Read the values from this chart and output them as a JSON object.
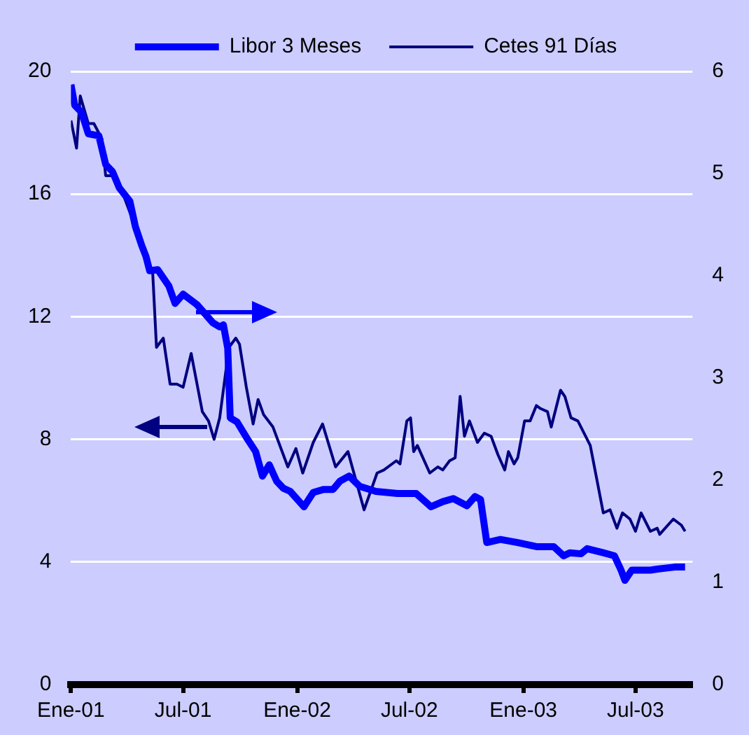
{
  "chart_data": {
    "type": "line",
    "xlim": [
      "2001-01-01",
      "2003-10-01"
    ],
    "xticks": [
      {
        "value": "2001-01-01",
        "label": "Ene-01"
      },
      {
        "value": "2001-07-01",
        "label": "Jul-01"
      },
      {
        "value": "2002-01-01",
        "label": "Ene-02"
      },
      {
        "value": "2002-07-01",
        "label": "Jul-02"
      },
      {
        "value": "2003-01-01",
        "label": "Ene-03"
      },
      {
        "value": "2003-07-01",
        "label": "Jul-03"
      }
    ],
    "ylim": [
      0,
      20
    ],
    "yticks": [
      0,
      4,
      8,
      12,
      16,
      20
    ],
    "y2lim": [
      0,
      6
    ],
    "y2ticks": [
      0,
      1,
      2,
      3,
      4,
      5,
      6
    ],
    "grid": "y",
    "legend": "top",
    "marker": "none",
    "line_style": "solid",
    "series": [
      {
        "name": "Libor 3 Meses",
        "color": "#0000ff",
        "axis": "y2",
        "x": [
          "2001-01-01",
          "2001-01-07",
          "2001-01-18",
          "2001-01-29",
          "2001-02-15",
          "2001-02-26",
          "2001-03-09",
          "2001-03-20",
          "2001-04-06",
          "2001-04-15",
          "2001-04-25",
          "2001-05-02",
          "2001-05-08",
          "2001-05-21",
          "2001-06-08",
          "2001-06-18",
          "2001-07-01",
          "2001-07-23",
          "2001-08-18",
          "2001-08-29",
          "2001-09-04",
          "2001-09-11",
          "2001-09-15",
          "2001-09-26",
          "2001-10-11",
          "2001-10-26",
          "2001-11-06",
          "2001-11-17",
          "2001-11-29",
          "2001-12-10",
          "2001-12-21",
          "2002-01-12",
          "2002-01-27",
          "2002-02-13",
          "2002-02-28",
          "2002-03-11",
          "2002-03-26",
          "2002-04-12",
          "2002-05-08",
          "2002-06-12",
          "2002-07-12",
          "2002-08-05",
          "2002-08-24",
          "2002-09-10",
          "2002-10-02",
          "2002-10-15",
          "2002-10-24",
          "2002-11-03",
          "2002-11-25",
          "2002-12-23",
          "2003-01-22",
          "2003-02-19",
          "2003-03-07",
          "2003-03-17",
          "2003-04-04",
          "2003-04-14",
          "2003-05-10",
          "2003-05-28",
          "2003-06-07",
          "2003-06-14",
          "2003-06-25",
          "2003-07-25",
          "2003-08-05",
          "2003-09-02",
          "2003-09-19"
        ],
        "values": [
          5.87,
          5.67,
          5.6,
          5.39,
          5.37,
          5.09,
          5.02,
          4.86,
          4.73,
          4.48,
          4.3,
          4.19,
          4.05,
          4.06,
          3.9,
          3.73,
          3.82,
          3.72,
          3.54,
          3.5,
          3.52,
          3.29,
          2.61,
          2.57,
          2.42,
          2.28,
          2.04,
          2.15,
          1.99,
          1.92,
          1.89,
          1.74,
          1.88,
          1.91,
          1.91,
          1.99,
          2.04,
          1.94,
          1.89,
          1.87,
          1.87,
          1.74,
          1.79,
          1.82,
          1.75,
          1.84,
          1.81,
          1.39,
          1.42,
          1.39,
          1.35,
          1.35,
          1.26,
          1.29,
          1.28,
          1.33,
          1.29,
          1.26,
          1.13,
          1.02,
          1.12,
          1.12,
          1.13,
          1.15,
          1.15
        ]
      },
      {
        "name": "Cetes 91 Días",
        "color": "#000080",
        "x": [
          "2001-01-01",
          "2001-01-10",
          "2001-01-16",
          "2001-01-29",
          "2001-02-07",
          "2001-02-20",
          "2001-02-26",
          "2001-03-15",
          "2001-04-10",
          "2001-04-28",
          "2001-05-13",
          "2001-05-19",
          "2001-05-30",
          "2001-06-10",
          "2001-06-21",
          "2001-07-01",
          "2001-07-14",
          "2001-08-01",
          "2001-08-11",
          "2001-08-20",
          "2001-08-29",
          "2001-09-13",
          "2001-09-24",
          "2001-09-30",
          "2001-10-11",
          "2001-10-22",
          "2001-10-30",
          "2001-11-08",
          "2001-11-23",
          "2001-12-17",
          "2001-12-30",
          "2002-01-10",
          "2002-01-27",
          "2002-02-11",
          "2002-03-04",
          "2002-03-24",
          "2002-04-19",
          "2002-05-10",
          "2002-05-21",
          "2002-06-10",
          "2002-06-16",
          "2002-06-27",
          "2002-07-03",
          "2002-07-08",
          "2002-07-14",
          "2002-08-03",
          "2002-08-16",
          "2002-08-24",
          "2002-09-04",
          "2002-09-13",
          "2002-09-21",
          "2002-09-28",
          "2002-10-06",
          "2002-10-19",
          "2002-10-30",
          "2002-11-10",
          "2002-11-21",
          "2002-12-02",
          "2002-12-08",
          "2002-12-17",
          "2002-12-23",
          "2003-01-03",
          "2003-01-12",
          "2003-01-22",
          "2003-01-29",
          "2003-02-09",
          "2003-02-15",
          "2003-03-02",
          "2003-03-09",
          "2003-03-19",
          "2003-03-30",
          "2003-04-19",
          "2003-05-10",
          "2003-05-21",
          "2003-06-01",
          "2003-06-10",
          "2003-06-22",
          "2003-07-01",
          "2003-07-10",
          "2003-07-25",
          "2003-08-05",
          "2003-08-09",
          "2003-08-31",
          "2003-09-13",
          "2003-09-19"
        ],
        "values": [
          18.4,
          17.5,
          19.2,
          18.3,
          18.3,
          17.8,
          16.6,
          16.6,
          null,
          null,
          13.4,
          11.0,
          11.3,
          9.8,
          9.8,
          9.7,
          10.8,
          8.9,
          8.6,
          8.0,
          8.7,
          11.0,
          11.3,
          11.1,
          9.7,
          8.5,
          9.3,
          8.8,
          8.4,
          7.1,
          7.7,
          6.9,
          7.9,
          8.5,
          7.1,
          7.6,
          5.7,
          6.9,
          7.0,
          7.3,
          7.2,
          8.6,
          8.7,
          7.6,
          7.8,
          6.9,
          7.1,
          7.0,
          7.3,
          7.4,
          9.4,
          8.1,
          8.6,
          7.9,
          8.2,
          8.1,
          7.5,
          7.0,
          7.6,
          7.2,
          7.4,
          8.6,
          8.6,
          9.1,
          9.0,
          8.9,
          8.4,
          9.6,
          9.4,
          8.7,
          8.6,
          7.8,
          5.6,
          5.7,
          5.1,
          5.6,
          5.4,
          5.0,
          5.6,
          5.0,
          5.1,
          4.9,
          5.4,
          5.2,
          5.0
        ]
      }
    ]
  }
}
